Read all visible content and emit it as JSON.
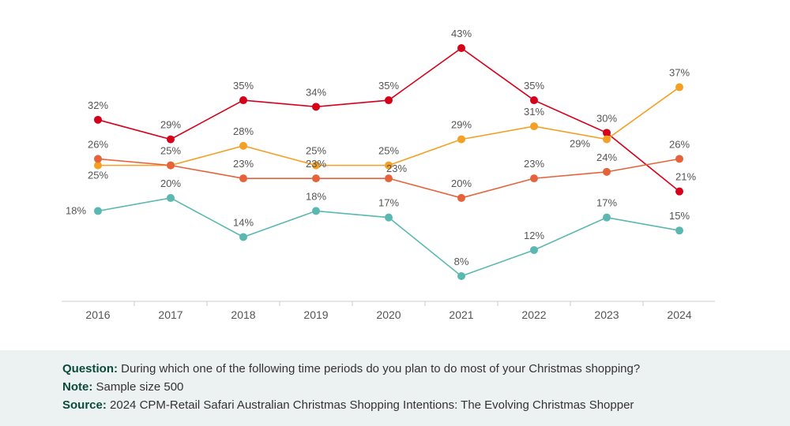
{
  "chart_data": {
    "type": "line",
    "title": "",
    "xlabel": "",
    "ylabel": "",
    "categories": [
      "2016",
      "2017",
      "2018",
      "2019",
      "2020",
      "2021",
      "2022",
      "2023",
      "2024"
    ],
    "series": [
      {
        "color": "#d7001a",
        "values": [
          32,
          29,
          35,
          34,
          35,
          43,
          35,
          30,
          21
        ]
      },
      {
        "color": "#f3a024",
        "values": [
          25,
          25,
          28,
          25,
          25,
          29,
          31,
          29,
          37
        ]
      },
      {
        "color": "#e6623a",
        "values": [
          26,
          25,
          23,
          23,
          23,
          20,
          23,
          24,
          26
        ]
      },
      {
        "color": "#5bb8b0",
        "values": [
          18,
          20,
          14,
          18,
          17,
          8,
          12,
          17,
          15
        ]
      }
    ],
    "value_format": "percent",
    "grid": false,
    "legend": "none"
  },
  "footer": {
    "question_label": "Question:",
    "question": "During which one of the following time periods do you plan to do most of your Christmas shopping?",
    "note_label": "Note:",
    "note": "Sample size 500",
    "source_label": "Source:",
    "source": "2024 CPM-Retail Safari Australian Christmas Shopping Intentions: The Evolving Christmas Shopper"
  }
}
